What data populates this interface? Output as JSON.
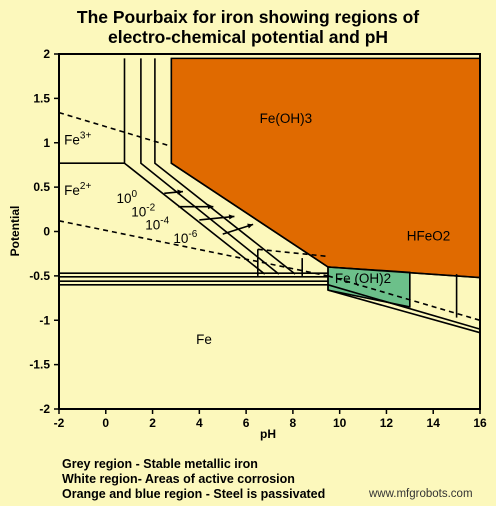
{
  "page": {
    "title_line_1": "The Pourbaix for iron showing regions of",
    "title_line_2": "electro-chemical potential and pH",
    "legend": [
      "Grey region - Stable metallic iron",
      "White region- Areas of active corrosion",
      "Orange and blue region - Steel is passivated"
    ],
    "watermark": "www.mfgrobots.com"
  },
  "colors": {
    "background": "#fcf8bc",
    "passive_orange": "#e06a00",
    "passive_green": "#6cc08a",
    "line": "#000000"
  },
  "chart_data": {
    "type": "diagram",
    "title": "The Pourbaix for iron showing regions of electro-chemical potential and pH",
    "xlabel": "pH",
    "ylabel": "Potential",
    "xlim": [
      -2,
      16
    ],
    "ylim": [
      -2,
      2
    ],
    "xticks": [
      -2,
      0,
      2,
      4,
      6,
      8,
      10,
      12,
      14,
      16
    ],
    "yticks": [
      -2,
      -1.5,
      -1,
      -0.5,
      0,
      0.5,
      1,
      1.5,
      2
    ],
    "xtick_labels": [
      "-2",
      "0",
      "2",
      "4",
      "6",
      "8",
      "10",
      "12",
      "14",
      "16"
    ],
    "ytick_labels": [
      "-2",
      "-1.5",
      "-1",
      "-0.5",
      "0",
      "0.5",
      "1",
      "1.5",
      "2"
    ],
    "regions": [
      {
        "label": "Fe(OH)3",
        "color": "#e06a00",
        "polygon": [
          [
            2.8,
            1.95
          ],
          [
            16,
            1.95
          ],
          [
            16,
            -0.52
          ],
          [
            9.5,
            -0.4
          ],
          [
            2.8,
            0.77
          ]
        ]
      },
      {
        "label": "Fe (OH)2",
        "color": "#6cc08a",
        "polygon": [
          [
            9.5,
            -0.4
          ],
          [
            13,
            -0.46
          ],
          [
            13,
            -0.85
          ],
          [
            9.5,
            -0.66
          ]
        ]
      }
    ],
    "region_labels": [
      {
        "text": "Fe(OH)3",
        "at": [
          7.7,
          1.22
        ]
      },
      {
        "text": "HFeO2",
        "at": [
          13.8,
          -0.1
        ]
      },
      {
        "text": "Fe (OH)2",
        "at": [
          11.0,
          -0.58
        ]
      },
      {
        "text": "Fe",
        "at": [
          4.2,
          -1.27
        ]
      },
      {
        "text": "Fe",
        "sup": "3+",
        "at": [
          -1.2,
          0.98
        ]
      },
      {
        "text": "Fe",
        "sup": "2+",
        "at": [
          -1.2,
          0.41
        ]
      }
    ],
    "concentration_labels": [
      {
        "base": "10",
        "sup": "0",
        "at": [
          0.9,
          0.32
        ]
      },
      {
        "base": "10",
        "sup": "-2",
        "at": [
          1.6,
          0.17
        ]
      },
      {
        "base": "10",
        "sup": "-4",
        "at": [
          2.2,
          0.02
        ]
      },
      {
        "base": "10",
        "sup": "-6",
        "at": [
          3.4,
          -0.13
        ]
      }
    ],
    "label_arrows": [
      {
        "from": [
          2.5,
          0.43
        ],
        "to": [
          3.3,
          0.45
        ]
      },
      {
        "from": [
          3.1,
          0.28
        ],
        "to": [
          4.6,
          0.28
        ]
      },
      {
        "from": [
          4.0,
          0.13
        ],
        "to": [
          5.5,
          0.17
        ]
      },
      {
        "from": [
          5.0,
          -0.03
        ],
        "to": [
          6.3,
          0.08
        ]
      }
    ],
    "solid_lines": [
      {
        "points": [
          [
            0.8,
            1.95
          ],
          [
            0.8,
            0.77
          ],
          [
            6.8,
            -0.48
          ]
        ]
      },
      {
        "points": [
          [
            1.5,
            1.95
          ],
          [
            1.5,
            0.77
          ],
          [
            7.4,
            -0.48
          ]
        ]
      },
      {
        "points": [
          [
            2.1,
            1.95
          ],
          [
            2.1,
            0.77
          ],
          [
            8.1,
            -0.48
          ]
        ]
      },
      {
        "points": [
          [
            2.8,
            1.95
          ],
          [
            2.8,
            0.77
          ],
          [
            9.5,
            -0.4
          ]
        ]
      },
      {
        "points": [
          [
            9.5,
            -0.4
          ],
          [
            16,
            -0.52
          ]
        ]
      },
      {
        "points": [
          [
            -2,
            -0.47
          ],
          [
            9.5,
            -0.47
          ]
        ]
      },
      {
        "points": [
          [
            -2,
            -0.51
          ],
          [
            9.5,
            -0.51
          ]
        ]
      },
      {
        "points": [
          [
            -2,
            -0.56
          ],
          [
            9.5,
            -0.56
          ]
        ]
      },
      {
        "points": [
          [
            -2,
            -0.6
          ],
          [
            9.5,
            -0.6
          ]
        ]
      },
      {
        "points": [
          [
            9.5,
            -0.6
          ],
          [
            16,
            -1.1
          ]
        ]
      },
      {
        "points": [
          [
            9.5,
            -0.66
          ],
          [
            16,
            -1.14
          ]
        ]
      },
      {
        "points": [
          [
            -2,
            0.77
          ],
          [
            0.8,
            0.77
          ]
        ]
      },
      {
        "points": [
          [
            6.5,
            -0.2
          ],
          [
            6.5,
            -0.5
          ]
        ]
      },
      {
        "points": [
          [
            8.4,
            -0.3
          ],
          [
            8.4,
            -0.5
          ]
        ]
      },
      {
        "points": [
          [
            9.5,
            -0.4
          ],
          [
            9.5,
            -0.66
          ]
        ]
      },
      {
        "points": [
          [
            13,
            -0.46
          ],
          [
            13,
            -0.85
          ]
        ]
      },
      {
        "points": [
          [
            15,
            -0.48
          ],
          [
            15,
            -0.97
          ]
        ]
      }
    ],
    "dashed_lines": [
      {
        "points": [
          [
            -2,
            1.34
          ],
          [
            2.8,
            0.96
          ]
        ]
      },
      {
        "points": [
          [
            -2,
            0.12
          ],
          [
            9.5,
            -0.5
          ]
        ]
      },
      {
        "points": [
          [
            9.5,
            -0.5
          ],
          [
            16,
            -1.0
          ]
        ]
      },
      {
        "points": [
          [
            6.5,
            -0.2
          ],
          [
            9.5,
            -0.28
          ]
        ]
      }
    ]
  }
}
